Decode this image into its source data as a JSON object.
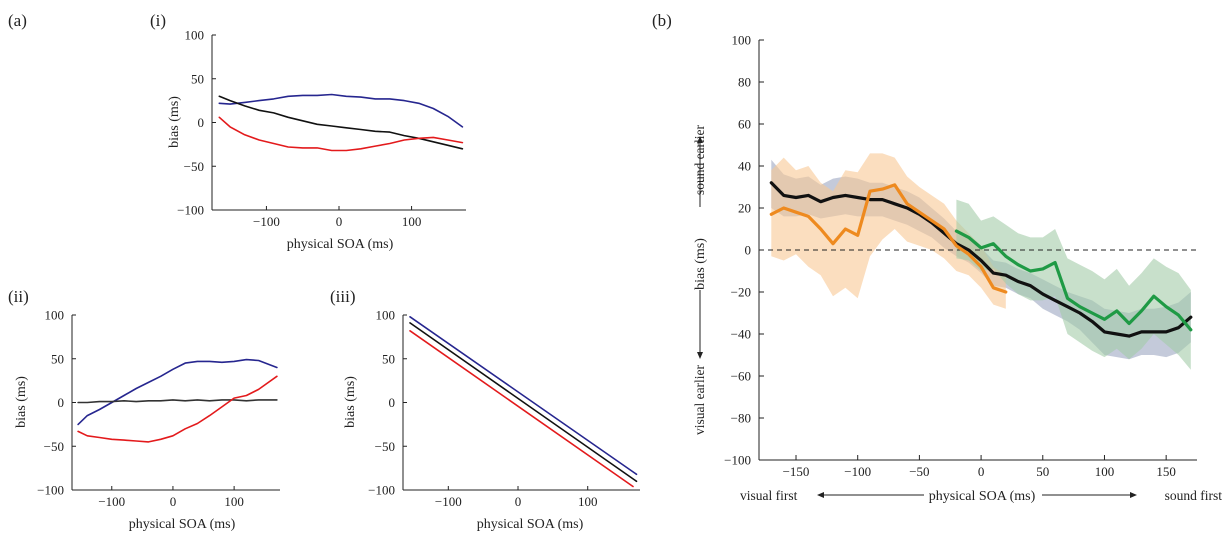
{
  "figure": {
    "panel_a_label": "(a)",
    "panel_b_label": "(b)"
  },
  "chart_data": [
    {
      "id": "a_i",
      "type": "line",
      "panel_label": "(i)",
      "xlabel": "physical SOA (ms)",
      "ylabel": "bias (ms)",
      "xlim": [
        -175,
        175
      ],
      "ylim": [
        -100,
        100
      ],
      "xticks": [
        -100,
        0,
        100
      ],
      "yticks": [
        100,
        50,
        0,
        -50,
        -100
      ],
      "grid": false,
      "series": [
        {
          "color": "#26268f",
          "x": [
            -165,
            -150,
            -130,
            -110,
            -90,
            -70,
            -50,
            -30,
            -10,
            10,
            30,
            50,
            70,
            90,
            110,
            130,
            150,
            170
          ],
          "y": [
            22,
            21,
            23,
            25,
            27,
            30,
            31,
            31,
            32,
            30,
            29,
            27,
            27,
            25,
            22,
            16,
            7,
            -5
          ]
        },
        {
          "color": "#111111",
          "x": [
            -165,
            -150,
            -130,
            -110,
            -90,
            -70,
            -50,
            -30,
            -10,
            10,
            30,
            50,
            70,
            90,
            110,
            130,
            150,
            170
          ],
          "y": [
            30,
            25,
            19,
            14,
            11,
            6,
            2,
            -2,
            -4,
            -6,
            -8,
            -10,
            -11,
            -15,
            -18,
            -22,
            -26,
            -30
          ]
        },
        {
          "color": "#e31a1c",
          "x": [
            -165,
            -150,
            -130,
            -110,
            -90,
            -70,
            -50,
            -30,
            -10,
            10,
            30,
            50,
            70,
            90,
            110,
            130,
            150,
            170
          ],
          "y": [
            6,
            -5,
            -14,
            -20,
            -24,
            -28,
            -29,
            -29,
            -32,
            -32,
            -30,
            -27,
            -24,
            -20,
            -18,
            -17,
            -20,
            -23
          ]
        }
      ]
    },
    {
      "id": "a_ii",
      "type": "line",
      "panel_label": "(ii)",
      "xlabel": "physical SOA (ms)",
      "ylabel": "bias (ms)",
      "xlim": [
        -165,
        175
      ],
      "ylim": [
        -100,
        100
      ],
      "xticks": [
        -100,
        0,
        100
      ],
      "yticks": [
        100,
        50,
        0,
        -50,
        -100
      ],
      "grid": false,
      "series": [
        {
          "color": "#26268f",
          "x": [
            -155,
            -140,
            -120,
            -100,
            -80,
            -60,
            -40,
            -20,
            0,
            20,
            40,
            60,
            80,
            100,
            120,
            140,
            170
          ],
          "y": [
            -25,
            -15,
            -8,
            0,
            8,
            16,
            23,
            30,
            38,
            45,
            47,
            47,
            46,
            47,
            49,
            48,
            40
          ]
        },
        {
          "color": "#333333",
          "x": [
            -155,
            -140,
            -120,
            -100,
            -80,
            -60,
            -40,
            -20,
            0,
            20,
            40,
            60,
            80,
            100,
            120,
            140,
            170
          ],
          "y": [
            0,
            0,
            1,
            1,
            2,
            1,
            2,
            2,
            3,
            2,
            3,
            2,
            3,
            3,
            2,
            3,
            3
          ]
        },
        {
          "color": "#e31a1c",
          "x": [
            -155,
            -140,
            -120,
            -100,
            -80,
            -60,
            -40,
            -20,
            0,
            20,
            40,
            60,
            80,
            100,
            120,
            140,
            170
          ],
          "y": [
            -33,
            -38,
            -40,
            -42,
            -43,
            -44,
            -45,
            -42,
            -38,
            -30,
            -24,
            -15,
            -5,
            5,
            8,
            15,
            30
          ]
        }
      ]
    },
    {
      "id": "a_iii",
      "type": "line",
      "panel_label": "(iii)",
      "xlabel": "physical SOA (ms)",
      "ylabel": "bias (ms)",
      "xlim": [
        -165,
        175
      ],
      "ylim": [
        -100,
        100
      ],
      "xticks": [
        -100,
        0,
        100
      ],
      "yticks": [
        100,
        50,
        0,
        -50,
        -100
      ],
      "grid": false,
      "series": [
        {
          "color": "#26268f",
          "x": [
            -155,
            170
          ],
          "y": [
            98,
            -82
          ]
        },
        {
          "color": "#111111",
          "x": [
            -155,
            170
          ],
          "y": [
            91,
            -90
          ]
        },
        {
          "color": "#e31a1c",
          "x": [
            -155,
            165
          ],
          "y": [
            82,
            -96
          ]
        }
      ]
    },
    {
      "id": "b",
      "type": "line",
      "xlabel": "physical SOA (ms)",
      "ylabel": "bias (ms)",
      "xlim": [
        -180,
        175
      ],
      "ylim": [
        -100,
        100
      ],
      "xticks": [
        -150,
        -100,
        -50,
        0,
        50,
        100,
        150
      ],
      "yticks": [
        100,
        80,
        60,
        40,
        20,
        0,
        -20,
        -40,
        -60,
        -80,
        -100
      ],
      "grid": false,
      "reference_line_y": 0,
      "annotations": {
        "y_top": "sound earlier",
        "y_bottom": "visual earlier",
        "x_left": "visual first",
        "x_right": "sound first"
      },
      "series": [
        {
          "color": "#111111",
          "x": [
            -170,
            -160,
            -150,
            -140,
            -130,
            -120,
            -110,
            -100,
            -90,
            -80,
            -70,
            -60,
            -50,
            -40,
            -30,
            -20,
            -10,
            0,
            10,
            20,
            30,
            40,
            50,
            60,
            70,
            80,
            90,
            100,
            110,
            120,
            130,
            140,
            150,
            160,
            170
          ],
          "y": [
            32,
            26,
            25,
            26,
            23,
            25,
            26,
            25,
            24,
            24,
            22,
            20,
            17,
            13,
            8,
            3,
            0,
            -5,
            -11,
            -12,
            -15,
            -17,
            -21,
            -24,
            -27,
            -30,
            -34,
            -39,
            -40,
            -41,
            -39,
            -39,
            -39,
            -37,
            -32
          ],
          "band_lower": [
            20,
            16,
            16,
            17,
            15,
            16,
            17,
            16,
            16,
            16,
            14,
            12,
            9,
            6,
            1,
            -3,
            -6,
            -11,
            -17,
            -18,
            -21,
            -23,
            -28,
            -31,
            -34,
            -38,
            -44,
            -50,
            -51,
            -52,
            -50,
            -50,
            -51,
            -49,
            -44
          ],
          "band_upper": [
            43,
            36,
            34,
            35,
            31,
            34,
            35,
            34,
            32,
            32,
            30,
            28,
            25,
            20,
            15,
            9,
            6,
            1,
            -5,
            -6,
            -9,
            -11,
            -14,
            -17,
            -20,
            -22,
            -24,
            -28,
            -29,
            -30,
            -28,
            -28,
            -27,
            -25,
            -20
          ],
          "band_color": "#9ca7c2"
        },
        {
          "color": "#ee8a1f",
          "x": [
            -170,
            -160,
            -150,
            -140,
            -130,
            -120,
            -110,
            -100,
            -90,
            -80,
            -70,
            -60,
            -50,
            -40,
            -30,
            -20,
            -10,
            0,
            10,
            20
          ],
          "y": [
            17,
            20,
            18,
            16,
            10,
            3,
            10,
            7,
            28,
            29,
            31,
            22,
            18,
            14,
            10,
            2,
            -2,
            -8,
            -18,
            -20
          ],
          "band_lower": [
            -3,
            -5,
            -2,
            -8,
            -12,
            -22,
            -18,
            -23,
            -3,
            5,
            10,
            4,
            2,
            0,
            -4,
            -10,
            -12,
            -18,
            -26,
            -28
          ],
          "band_upper": [
            38,
            44,
            38,
            40,
            32,
            28,
            38,
            37,
            46,
            46,
            44,
            35,
            30,
            26,
            22,
            14,
            8,
            2,
            -8,
            -12
          ],
          "band_color": "#f8c894"
        },
        {
          "color": "#1f9a45",
          "x": [
            -20,
            -10,
            0,
            10,
            20,
            30,
            40,
            50,
            60,
            70,
            80,
            90,
            100,
            110,
            120,
            130,
            140,
            150,
            160,
            170
          ],
          "y": [
            9,
            6,
            1,
            3,
            -3,
            -7,
            -10,
            -9,
            -6,
            -23,
            -27,
            -30,
            -33,
            -29,
            -35,
            -29,
            -22,
            -27,
            -31,
            -38
          ],
          "band_lower": [
            -4,
            -5,
            -10,
            -9,
            -16,
            -21,
            -24,
            -24,
            -22,
            -40,
            -44,
            -48,
            -51,
            -47,
            -52,
            -47,
            -40,
            -45,
            -50,
            -57
          ],
          "band_upper": [
            24,
            22,
            14,
            16,
            12,
            8,
            6,
            6,
            10,
            -4,
            -7,
            -10,
            -14,
            -9,
            -17,
            -11,
            -4,
            -8,
            -11,
            -19
          ],
          "band_color": "#a4cca9"
        }
      ]
    }
  ]
}
